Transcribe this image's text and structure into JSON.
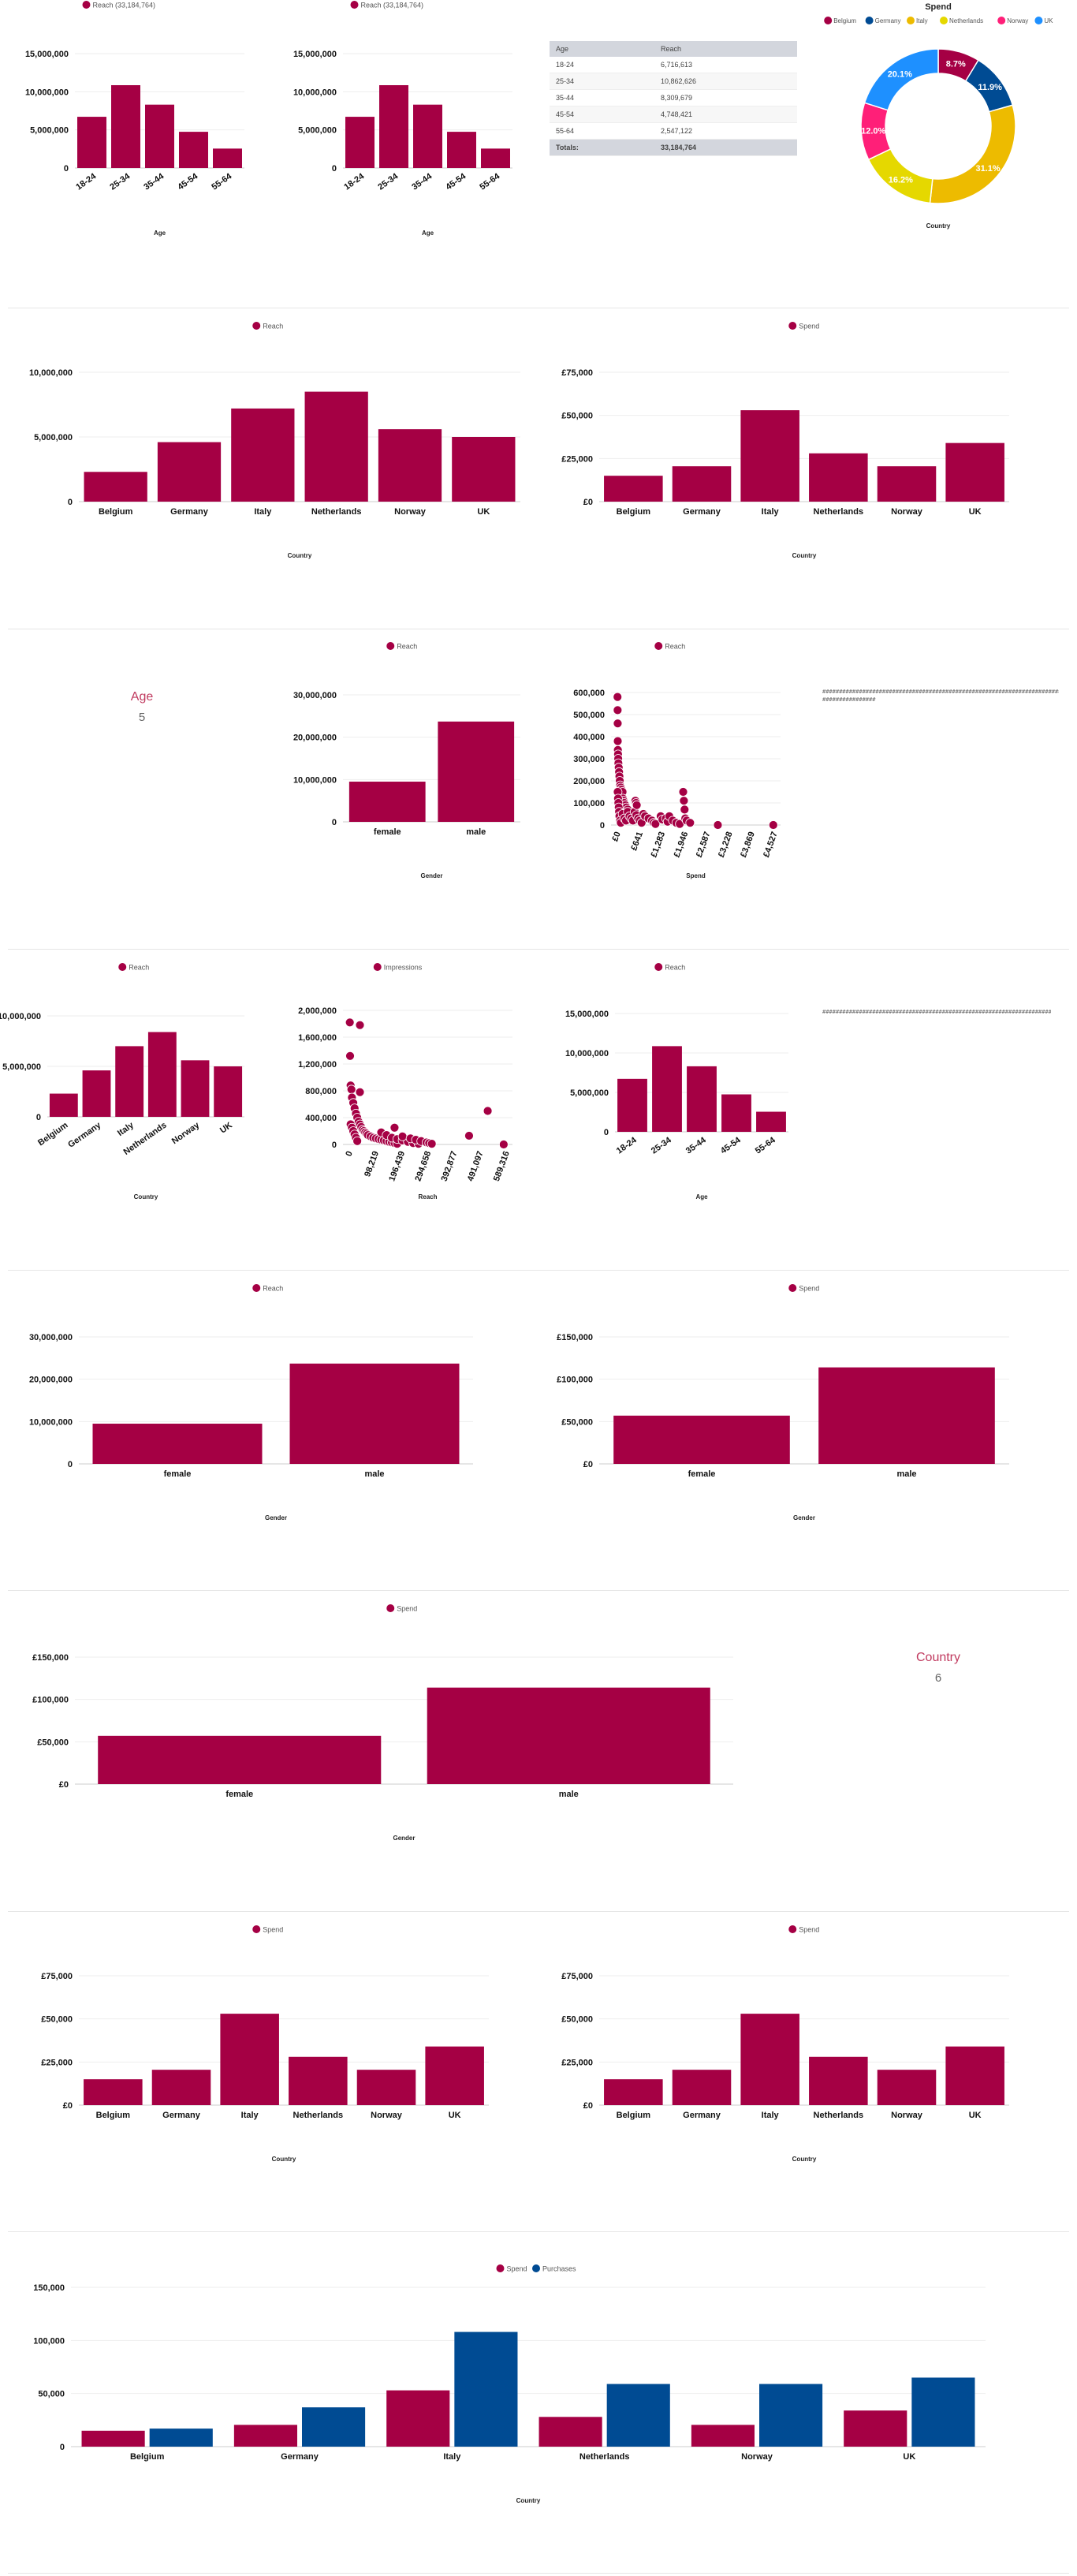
{
  "colors": {
    "primary": "#a50044",
    "secondary": "#004b93",
    "donut": [
      "#a50044",
      "#004b93",
      "#edbb00",
      "#e5d800",
      "#ff1f78",
      "#1e90ff"
    ]
  },
  "age_table": {
    "headers": [
      "Age",
      "Reach"
    ],
    "rows": [
      [
        "18-24",
        "6,716,613"
      ],
      [
        "25-34",
        "10,862,626"
      ],
      [
        "35-44",
        "8,309,679"
      ],
      [
        "45-54",
        "4,748,421"
      ],
      [
        "55-64",
        "2,547,122"
      ]
    ],
    "totals": [
      "Totals:",
      "33,184,764"
    ]
  },
  "kpis": [
    {
      "title": "Age",
      "value": "5"
    },
    {
      "title": "Country",
      "value": "6"
    }
  ],
  "hash_text_1": "################################################################################",
  "hash_text_1b": "################",
  "hash_text_2": "################################################################################",
  "chart_data": [
    {
      "id": "c1",
      "type": "bar",
      "legend": [
        "Reach (33,184,764)"
      ],
      "xlabel": "Age",
      "ylabel": "",
      "categories": [
        "18-24",
        "25-34",
        "35-44",
        "45-54",
        "55-64"
      ],
      "series": [
        {
          "name": "Reach (33,184,764)",
          "values": [
            6716613,
            10862626,
            8309679,
            4748421,
            2547122
          ]
        }
      ],
      "ylim": [
        0,
        15000000
      ],
      "yticks": [
        0,
        5000000,
        10000000,
        15000000
      ],
      "ytick_labels": [
        "0",
        "5,000,000",
        "10,000,000",
        "15,000,000"
      ],
      "rotate_x": true
    },
    {
      "id": "c2",
      "type": "bar",
      "legend": [
        "Reach (33,184,764)"
      ],
      "xlabel": "Age",
      "ylabel": "",
      "categories": [
        "18-24",
        "25-34",
        "35-44",
        "45-54",
        "55-64"
      ],
      "series": [
        {
          "name": "Reach (33,184,764)",
          "values": [
            6716613,
            10862626,
            8309679,
            4748421,
            2547122
          ]
        }
      ],
      "ylim": [
        0,
        15000000
      ],
      "yticks": [
        0,
        5000000,
        10000000,
        15000000
      ],
      "ytick_labels": [
        "0",
        "5,000,000",
        "10,000,000",
        "15,000,000"
      ],
      "rotate_x": true
    },
    {
      "id": "c3",
      "type": "pie",
      "title": "Spend",
      "xlabel": "Country",
      "categories": [
        "Belgium",
        "Germany",
        "Italy",
        "Netherlands",
        "Norway",
        "UK"
      ],
      "values": [
        8.7,
        11.9,
        31.1,
        16.2,
        12.0,
        20.1
      ],
      "labels": [
        "8.7%",
        "11.9%",
        "31.1%",
        "16.2%",
        "12.0%",
        "20.1%"
      ]
    },
    {
      "id": "c4",
      "type": "bar",
      "legend": [
        "Reach"
      ],
      "xlabel": "Country",
      "categories": [
        "Belgium",
        "Germany",
        "Italy",
        "Netherlands",
        "Norway",
        "UK"
      ],
      "series": [
        {
          "name": "Reach",
          "values": [
            2300000,
            4600000,
            7200000,
            8500000,
            5600000,
            5000000
          ]
        }
      ],
      "ylim": [
        0,
        10000000
      ],
      "yticks": [
        0,
        5000000,
        10000000
      ],
      "ytick_labels": [
        "0",
        "5,000,000",
        "10,000,000"
      ]
    },
    {
      "id": "c5",
      "type": "bar",
      "legend": [
        "Spend"
      ],
      "xlabel": "Country",
      "categories": [
        "Belgium",
        "Germany",
        "Italy",
        "Netherlands",
        "Norway",
        "UK"
      ],
      "series": [
        {
          "name": "Spend",
          "values": [
            15000,
            20500,
            53000,
            28000,
            20500,
            34000
          ]
        }
      ],
      "ylim": [
        0,
        75000
      ],
      "yticks": [
        0,
        25000,
        50000,
        75000
      ],
      "ytick_labels": [
        "£0",
        "£25,000",
        "£50,000",
        "£75,000"
      ]
    },
    {
      "id": "c6",
      "type": "bar",
      "legend": [
        "Reach"
      ],
      "xlabel": "Gender",
      "categories": [
        "female",
        "male"
      ],
      "series": [
        {
          "name": "Reach",
          "values": [
            9500000,
            23700000
          ]
        }
      ],
      "ylim": [
        0,
        30000000
      ],
      "yticks": [
        0,
        10000000,
        20000000,
        30000000
      ],
      "ytick_labels": [
        "0",
        "10,000,000",
        "20,000,000",
        "30,000,000"
      ]
    },
    {
      "id": "c7",
      "type": "scatter",
      "legend": [
        "Reach"
      ],
      "xlabel": "Spend",
      "xticks": [
        0,
        641,
        1283,
        1946,
        2587,
        3228,
        3869,
        4527
      ],
      "xtick_labels": [
        "£0",
        "£641",
        "£1,283",
        "£1,946",
        "£2,587",
        "£3,228",
        "£3,869",
        "£4,527"
      ],
      "xlim": [
        0,
        4527
      ],
      "yticks": [
        0,
        100000,
        200000,
        300000,
        400000,
        500000,
        600000
      ],
      "ytick_labels": [
        "0",
        "100,000",
        "200,000",
        "300,000",
        "400,000",
        "500,000",
        "600,000"
      ],
      "ylim": [
        0,
        600000
      ],
      "points": [
        [
          5,
          580000
        ],
        [
          8,
          520000
        ],
        [
          10,
          460000
        ],
        [
          12,
          380000
        ],
        [
          15,
          340000
        ],
        [
          20,
          320000
        ],
        [
          25,
          300000
        ],
        [
          30,
          280000
        ],
        [
          40,
          260000
        ],
        [
          50,
          240000
        ],
        [
          60,
          220000
        ],
        [
          70,
          200000
        ],
        [
          80,
          180000
        ],
        [
          100,
          170000
        ],
        [
          120,
          160000
        ],
        [
          150,
          150000
        ],
        [
          160,
          120000
        ],
        [
          180,
          110000
        ],
        [
          200,
          100000
        ],
        [
          230,
          90000
        ],
        [
          260,
          80000
        ],
        [
          300,
          70000
        ],
        [
          10,
          150000
        ],
        [
          20,
          120000
        ],
        [
          30,
          100000
        ],
        [
          40,
          80000
        ],
        [
          50,
          60000
        ],
        [
          60,
          40000
        ],
        [
          80,
          20000
        ],
        [
          100,
          10000
        ],
        [
          150,
          50000
        ],
        [
          200,
          30000
        ],
        [
          250,
          20000
        ],
        [
          300,
          60000
        ],
        [
          350,
          40000
        ],
        [
          400,
          30000
        ],
        [
          450,
          20000
        ],
        [
          500,
          60000
        ],
        [
          550,
          45000
        ],
        [
          600,
          30000
        ],
        [
          650,
          20000
        ],
        [
          700,
          10000
        ],
        [
          750,
          50000
        ],
        [
          800,
          40000
        ],
        [
          900,
          30000
        ],
        [
          1000,
          20000
        ],
        [
          1050,
          10000
        ],
        [
          1100,
          5000
        ],
        [
          520,
          110000
        ],
        [
          540,
          100000
        ],
        [
          560,
          90000
        ],
        [
          1250,
          40000
        ],
        [
          1300,
          25000
        ],
        [
          1400,
          30000
        ],
        [
          1450,
          15000
        ],
        [
          1500,
          40000
        ],
        [
          1600,
          20000
        ],
        [
          1700,
          10000
        ],
        [
          1800,
          5000
        ],
        [
          1900,
          150000
        ],
        [
          1920,
          110000
        ],
        [
          1940,
          70000
        ],
        [
          1960,
          30000
        ],
        [
          2000,
          20000
        ],
        [
          2100,
          10000
        ],
        [
          2900,
          0
        ],
        [
          4500,
          0
        ]
      ]
    },
    {
      "id": "c8",
      "type": "bar",
      "legend": [
        "Reach"
      ],
      "xlabel": "Country",
      "categories": [
        "Belgium",
        "Germany",
        "Italy",
        "Netherlands",
        "Norway",
        "UK"
      ],
      "series": [
        {
          "name": "Reach",
          "values": [
            2300000,
            4600000,
            7000000,
            8400000,
            5600000,
            5000000
          ]
        }
      ],
      "ylim": [
        0,
        10000000
      ],
      "yticks": [
        0,
        5000000,
        10000000
      ],
      "ytick_labels": [
        "0",
        "5,000,000",
        "10,000,000"
      ],
      "rotate_x": true
    },
    {
      "id": "c9",
      "type": "scatter",
      "legend": [
        "Impressions"
      ],
      "xlabel": "Reach",
      "xticks": [
        0,
        98219,
        196439,
        294658,
        392877,
        491097,
        589316
      ],
      "xtick_labels": [
        "0",
        "98,219",
        "196,439",
        "294,658",
        "392,877",
        "491,097",
        "589,316"
      ],
      "xlim": [
        0,
        589316
      ],
      "yticks": [
        0,
        400000,
        800000,
        1200000,
        1600000,
        2000000
      ],
      "ytick_labels": [
        "0",
        "400,000",
        "800,000",
        "1,200,000",
        "1,600,000",
        "2,000,000"
      ],
      "ylim": [
        0,
        2000000
      ],
      "points": [
        [
          2000,
          1820000
        ],
        [
          40000,
          1780000
        ],
        [
          3000,
          1320000
        ],
        [
          5000,
          880000
        ],
        [
          8000,
          820000
        ],
        [
          40000,
          780000
        ],
        [
          10000,
          700000
        ],
        [
          15000,
          620000
        ],
        [
          20000,
          540000
        ],
        [
          25000,
          460000
        ],
        [
          30000,
          400000
        ],
        [
          35000,
          340000
        ],
        [
          40000,
          300000
        ],
        [
          45000,
          260000
        ],
        [
          50000,
          220000
        ],
        [
          55000,
          200000
        ],
        [
          60000,
          180000
        ],
        [
          65000,
          160000
        ],
        [
          70000,
          140000
        ],
        [
          80000,
          120000
        ],
        [
          90000,
          100000
        ],
        [
          100000,
          90000
        ],
        [
          110000,
          80000
        ],
        [
          120000,
          70000
        ],
        [
          130000,
          60000
        ],
        [
          140000,
          50000
        ],
        [
          150000,
          40000
        ],
        [
          160000,
          30000
        ],
        [
          170000,
          20000
        ],
        [
          180000,
          10000
        ],
        [
          5000,
          300000
        ],
        [
          10000,
          250000
        ],
        [
          15000,
          200000
        ],
        [
          20000,
          150000
        ],
        [
          25000,
          100000
        ],
        [
          30000,
          50000
        ],
        [
          120000,
          180000
        ],
        [
          140000,
          140000
        ],
        [
          160000,
          100000
        ],
        [
          180000,
          80000
        ],
        [
          200000,
          60000
        ],
        [
          220000,
          40000
        ],
        [
          240000,
          20000
        ],
        [
          260000,
          10000
        ],
        [
          170000,
          250000
        ],
        [
          200000,
          120000
        ],
        [
          230000,
          90000
        ],
        [
          250000,
          70000
        ],
        [
          270000,
          50000
        ],
        [
          290000,
          30000
        ],
        [
          300000,
          20000
        ],
        [
          310000,
          10000
        ],
        [
          450000,
          130000
        ],
        [
          520000,
          500000
        ],
        [
          580000,
          0
        ]
      ]
    },
    {
      "id": "c10",
      "type": "bar",
      "legend": [
        "Reach"
      ],
      "xlabel": "Age",
      "categories": [
        "18-24",
        "25-34",
        "35-44",
        "45-54",
        "55-64"
      ],
      "series": [
        {
          "name": "Reach",
          "values": [
            6716613,
            10862626,
            8309679,
            4748421,
            2547122
          ]
        }
      ],
      "ylim": [
        0,
        15000000
      ],
      "yticks": [
        0,
        5000000,
        10000000,
        15000000
      ],
      "ytick_labels": [
        "0",
        "5,000,000",
        "10,000,000",
        "15,000,000"
      ],
      "rotate_x": true
    },
    {
      "id": "c11",
      "type": "bar",
      "legend": [
        "Reach"
      ],
      "xlabel": "Gender",
      "categories": [
        "female",
        "male"
      ],
      "series": [
        {
          "name": "Reach",
          "values": [
            9500000,
            23700000
          ]
        }
      ],
      "ylim": [
        0,
        30000000
      ],
      "yticks": [
        0,
        10000000,
        20000000,
        30000000
      ],
      "ytick_labels": [
        "0",
        "10,000,000",
        "20,000,000",
        "30,000,000"
      ]
    },
    {
      "id": "c12",
      "type": "bar",
      "legend": [
        "Spend"
      ],
      "xlabel": "Gender",
      "categories": [
        "female",
        "male"
      ],
      "series": [
        {
          "name": "Spend",
          "values": [
            57000,
            114000
          ]
        }
      ],
      "ylim": [
        0,
        150000
      ],
      "yticks": [
        0,
        50000,
        100000,
        150000
      ],
      "ytick_labels": [
        "£0",
        "£50,000",
        "£100,000",
        "£150,000"
      ]
    },
    {
      "id": "c13",
      "type": "bar",
      "legend": [
        "Spend"
      ],
      "xlabel": "Gender",
      "categories": [
        "female",
        "male"
      ],
      "series": [
        {
          "name": "Spend",
          "values": [
            57000,
            114000
          ]
        }
      ],
      "ylim": [
        0,
        150000
      ],
      "yticks": [
        0,
        50000,
        100000,
        150000
      ],
      "ytick_labels": [
        "£0",
        "£50,000",
        "£100,000",
        "£150,000"
      ]
    },
    {
      "id": "c14",
      "type": "bar",
      "legend": [
        "Spend"
      ],
      "xlabel": "Country",
      "categories": [
        "Belgium",
        "Germany",
        "Italy",
        "Netherlands",
        "Norway",
        "UK"
      ],
      "series": [
        {
          "name": "Spend",
          "values": [
            15000,
            20500,
            53000,
            28000,
            20500,
            34000
          ]
        }
      ],
      "ylim": [
        0,
        75000
      ],
      "yticks": [
        0,
        25000,
        50000,
        75000
      ],
      "ytick_labels": [
        "£0",
        "£25,000",
        "£50,000",
        "£75,000"
      ]
    },
    {
      "id": "c15",
      "type": "bar",
      "legend": [
        "Spend"
      ],
      "xlabel": "Country",
      "categories": [
        "Belgium",
        "Germany",
        "Italy",
        "Netherlands",
        "Norway",
        "UK"
      ],
      "series": [
        {
          "name": "Spend",
          "values": [
            15000,
            20500,
            53000,
            28000,
            20500,
            34000
          ]
        }
      ],
      "ylim": [
        0,
        75000
      ],
      "yticks": [
        0,
        25000,
        50000,
        75000
      ],
      "ytick_labels": [
        "£0",
        "£25,000",
        "£50,000",
        "£75,000"
      ]
    },
    {
      "id": "c16",
      "type": "bar",
      "legend": [
        "Spend",
        "Purchases"
      ],
      "xlabel": "Country",
      "categories": [
        "Belgium",
        "Germany",
        "Italy",
        "Netherlands",
        "Norway",
        "UK"
      ],
      "series": [
        {
          "name": "Spend",
          "values": [
            15000,
            20500,
            53000,
            28000,
            20500,
            34000
          ]
        },
        {
          "name": "Purchases",
          "values": [
            17000,
            37000,
            108000,
            59000,
            59000,
            65000
          ]
        }
      ],
      "ylim": [
        0,
        150000
      ],
      "yticks": [
        0,
        50000,
        100000,
        150000
      ],
      "ytick_labels": [
        "0",
        "50,000",
        "100,000",
        "150,000"
      ]
    }
  ]
}
